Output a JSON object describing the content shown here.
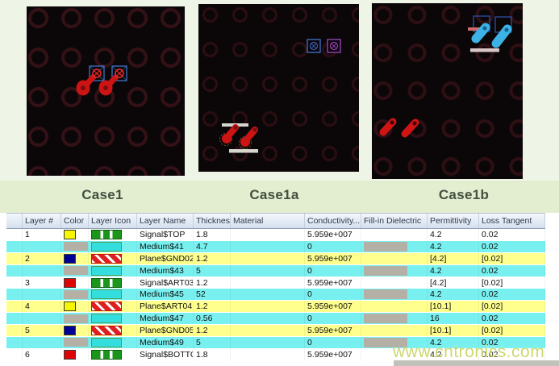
{
  "cases": {
    "case1_label": "Case1",
    "case1a_label": "Case1a",
    "case1b_label": "Case1b"
  },
  "watermark": {
    "text": "www.cntronics.com",
    "color": "#c8d45e"
  },
  "colors": {
    "top_band": "#eef4e6",
    "case_band": "#e2eecf",
    "panel_bg": "#0b0708",
    "trace_red": "#cc1414",
    "trace_cyan": "#3cb2e6",
    "selection_blue": "#3f74c8",
    "selection_purple": "#9a4ab8",
    "silkscreen_white": "#d6d6cc",
    "row_white": "#ffffff",
    "row_cyan": "#79f0f0",
    "row_yellow": "#ffff8e",
    "swatch_yellow": "#f6f600",
    "swatch_blue": "#000092",
    "swatch_red": "#dc0404",
    "swatch_gray": "#b4b0a6"
  },
  "table": {
    "headers": [
      "Layer #",
      "Color",
      "Layer Icon",
      "Layer Name",
      "Thickness...",
      "Material",
      "Conductivity...",
      "Fill-in Dielectric",
      "Permittivity",
      "Loss Tangent"
    ],
    "rows": [
      {
        "num": "1",
        "color": "yellow",
        "icon": "signal",
        "name": "Signal$TOP",
        "thickness": "1.8",
        "material": "",
        "conductivity": "5.959e+007",
        "fill": "",
        "permittivity": "4.2",
        "loss": "0.02",
        "bg": "white"
      },
      {
        "num": "",
        "color": "gray",
        "icon": "medium",
        "name": "Medium$41",
        "thickness": "4.7",
        "material": "",
        "conductivity": "0",
        "fill": "gray",
        "permittivity": "4.2",
        "loss": "0.02",
        "bg": "cyan"
      },
      {
        "num": "2",
        "color": "blue",
        "icon": "plane",
        "name": "Plane$GND02",
        "thickness": "1.2",
        "material": "",
        "conductivity": "5.959e+007",
        "fill": "",
        "permittivity": "[4.2]",
        "loss": "[0.02]",
        "bg": "yellow"
      },
      {
        "num": "",
        "color": "gray",
        "icon": "medium",
        "name": "Medium$43",
        "thickness": "5",
        "material": "",
        "conductivity": "0",
        "fill": "gray",
        "permittivity": "4.2",
        "loss": "0.02",
        "bg": "cyan"
      },
      {
        "num": "3",
        "color": "red",
        "icon": "signal",
        "name": "Signal$ART03",
        "thickness": "1.2",
        "material": "",
        "conductivity": "5.959e+007",
        "fill": "",
        "permittivity": "[4.2]",
        "loss": "[0.02]",
        "bg": "white"
      },
      {
        "num": "",
        "color": "gray",
        "icon": "medium",
        "name": "Medium$45",
        "thickness": "52",
        "material": "",
        "conductivity": "0",
        "fill": "gray",
        "permittivity": "4.2",
        "loss": "0.02",
        "bg": "cyan"
      },
      {
        "num": "4",
        "color": "yellow",
        "icon": "plane",
        "name": "Plane$ART04",
        "thickness": "1.2",
        "material": "",
        "conductivity": "5.959e+007",
        "fill": "",
        "permittivity": "[10.1]",
        "loss": "[0.02]",
        "bg": "yellow"
      },
      {
        "num": "",
        "color": "gray",
        "icon": "medium",
        "name": "Medium$47",
        "thickness": "0.56",
        "material": "",
        "conductivity": "0",
        "fill": "gray",
        "permittivity": "16",
        "loss": "0.02",
        "bg": "cyan"
      },
      {
        "num": "5",
        "color": "blue",
        "icon": "plane",
        "name": "Plane$GND05",
        "thickness": "1.2",
        "material": "",
        "conductivity": "5.959e+007",
        "fill": "",
        "permittivity": "[10.1]",
        "loss": "[0.02]",
        "bg": "yellow"
      },
      {
        "num": "",
        "color": "gray",
        "icon": "medium",
        "name": "Medium$49",
        "thickness": "5",
        "material": "",
        "conductivity": "0",
        "fill": "gray",
        "permittivity": "4.2",
        "loss": "0.02",
        "bg": "cyan"
      },
      {
        "num": "6",
        "color": "red",
        "icon": "signal",
        "name": "Signal$BOTTOM",
        "thickness": "1.8",
        "material": "",
        "conductivity": "5.959e+007",
        "fill": "",
        "permittivity": "4.2",
        "loss": "0.02",
        "bg": "white"
      }
    ]
  }
}
